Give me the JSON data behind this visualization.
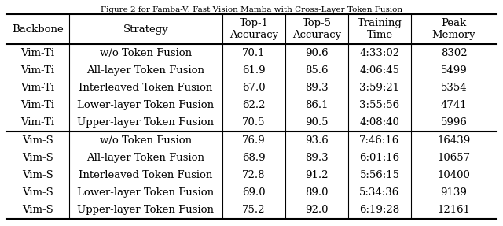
{
  "title": "Figure 2 for Famba-V: Fast Vision Mamba with Cross-Layer Token Fusion",
  "headers": [
    "Backbone",
    "Strategy",
    "Top-1\nAccuracy",
    "Top-5\nAccuracy",
    "Training\nTime",
    "Peak\nMemory"
  ],
  "rows": [
    [
      "Vim-Ti",
      "w/o Token Fusion",
      "70.1",
      "90.6",
      "4:33:02",
      "8302"
    ],
    [
      "Vim-Ti",
      "All-layer Token Fusion",
      "61.9",
      "85.6",
      "4:06:45",
      "5499"
    ],
    [
      "Vim-Ti",
      "Interleaved Token Fusion",
      "67.0",
      "89.3",
      "3:59:21",
      "5354"
    ],
    [
      "Vim-Ti",
      "Lower-layer Token Fusion",
      "62.2",
      "86.1",
      "3:55:56",
      "4741"
    ],
    [
      "Vim-Ti",
      "Upper-layer Token Fusion",
      "70.5",
      "90.5",
      "4:08:40",
      "5996"
    ],
    [
      "Vim-S",
      "w/o Token Fusion",
      "76.9",
      "93.6",
      "7:46:16",
      "16439"
    ],
    [
      "Vim-S",
      "All-layer Token Fusion",
      "68.9",
      "89.3",
      "6:01:16",
      "10657"
    ],
    [
      "Vim-S",
      "Interleaved Token Fusion",
      "72.8",
      "91.2",
      "5:56:15",
      "10400"
    ],
    [
      "Vim-S",
      "Lower-layer Token Fusion",
      "69.0",
      "89.0",
      "5:34:36",
      "9139"
    ],
    [
      "Vim-S",
      "Upper-layer Token Fusion",
      "75.2",
      "92.0",
      "6:19:28",
      "12161"
    ]
  ],
  "figsize": [
    6.4,
    2.87
  ],
  "dpi": 100,
  "font_size": 9.5,
  "background_color": "#ffffff"
}
